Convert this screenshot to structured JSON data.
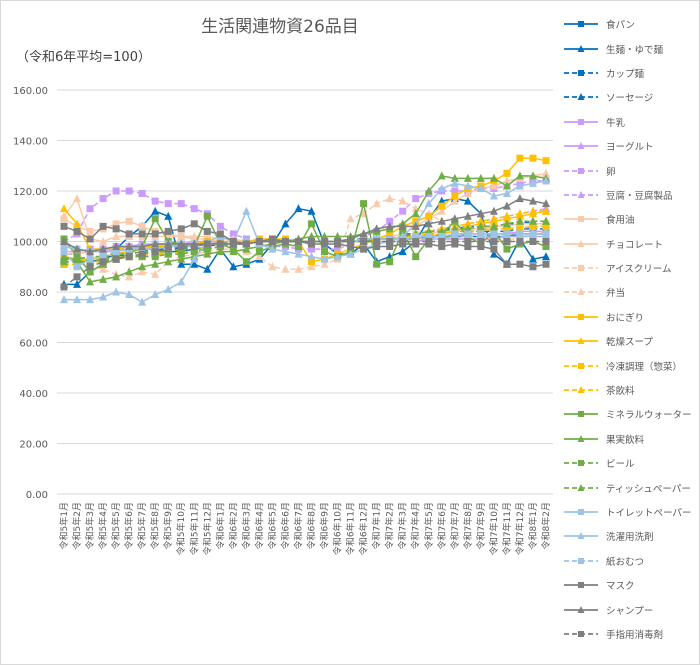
{
  "chart_data": {
    "type": "line",
    "title": "生活関連物資26品目",
    "subtitle": "（令和6年平均=100）",
    "xlabel": "",
    "ylabel": "",
    "ylim": [
      0,
      160
    ],
    "yticks": [
      "0.00",
      "20.00",
      "40.00",
      "60.00",
      "80.00",
      "100.00",
      "120.00",
      "140.00",
      "160.00"
    ],
    "grid": true,
    "legend_position": "right",
    "categories": [
      "令和5年1月",
      "令和5年2月",
      "令和5年3月",
      "令和5年4月",
      "令和5年5月",
      "令和5年6月",
      "令和5年7月",
      "令和5年8月",
      "令和5年9月",
      "令和5年10月",
      "令和5年11月",
      "令和5年12月",
      "令和6年1月",
      "令和6年2月",
      "令和6年3月",
      "令和6年4月",
      "令和6年5月",
      "令和6年6月",
      "令和6年7月",
      "令和6年8月",
      "令和6年9月",
      "令和6年10月",
      "令和6年11月",
      "令和6年12月",
      "令和7年1月",
      "令和7年2月",
      "令和7年3月",
      "令和7年4月",
      "令和7年5月",
      "令和7年6月",
      "令和7年7月",
      "令和7年8月",
      "令和7年9月",
      "令和7年10月",
      "令和7年11月",
      "令和7年12月",
      "令和8年1月",
      "令和8年2月"
    ],
    "series": [
      {
        "name": "食パン",
        "color": "#0070C0",
        "dash": false,
        "marker": "square",
        "values": [
          94,
          93,
          92,
          93,
          95,
          96,
          97,
          97,
          96,
          96,
          97,
          98,
          99,
          99,
          99,
          100,
          100,
          100,
          100,
          100,
          100,
          100,
          100,
          100,
          101,
          101,
          101,
          102,
          102,
          102,
          102,
          102,
          102,
          102,
          102,
          103,
          103,
          103
        ]
      },
      {
        "name": "生麺・ゆで麺",
        "color": "#0070C0",
        "dash": false,
        "marker": "triangle",
        "values": [
          83,
          83,
          88,
          91,
          97,
          102,
          106,
          112,
          110,
          91,
          91,
          89,
          97,
          90,
          91,
          93,
          99,
          107,
          113,
          112,
          99,
          95,
          95,
          99,
          92,
          94,
          96,
          100,
          109,
          116,
          117,
          116,
          111,
          95,
          91,
          101,
          93,
          94
        ]
      },
      {
        "name": "カップ麺",
        "color": "#0070C0",
        "dash": true,
        "marker": "square",
        "values": [
          91,
          91,
          92,
          93,
          94,
          95,
          96,
          97,
          97,
          97,
          98,
          99,
          99,
          99,
          100,
          100,
          100,
          100,
          100,
          100,
          100,
          100,
          101,
          101,
          101,
          101,
          101,
          101,
          103,
          104,
          104,
          104,
          104,
          104,
          104,
          105,
          105,
          105
        ]
      },
      {
        "name": "ソーセージ",
        "color": "#0070C0",
        "dash": true,
        "marker": "triangle",
        "values": [
          93,
          93,
          94,
          94,
          95,
          96,
          97,
          97,
          98,
          98,
          99,
          99,
          99,
          100,
          100,
          100,
          100,
          100,
          100,
          100,
          100,
          100,
          100,
          100,
          101,
          102,
          103,
          103,
          104,
          105,
          105,
          106,
          106,
          106,
          107,
          107,
          108,
          108
        ]
      },
      {
        "name": "牛乳",
        "color": "#CC99FF",
        "dash": false,
        "marker": "square",
        "values": [
          96,
          96,
          97,
          97,
          98,
          98,
          99,
          99,
          99,
          99,
          100,
          100,
          100,
          100,
          100,
          100,
          100,
          100,
          100,
          100,
          100,
          100,
          100,
          100,
          100,
          100,
          100,
          100,
          101,
          101,
          101,
          101,
          101,
          101,
          102,
          102,
          102,
          102
        ]
      },
      {
        "name": "ヨーグルト",
        "color": "#CC99FF",
        "dash": false,
        "marker": "triangle",
        "values": [
          95,
          95,
          96,
          96,
          97,
          97,
          98,
          98,
          98,
          99,
          99,
          99,
          100,
          100,
          100,
          100,
          100,
          100,
          100,
          100,
          100,
          100,
          100,
          100,
          101,
          101,
          101,
          102,
          102,
          102,
          102,
          103,
          103,
          103,
          103,
          104,
          104,
          104
        ]
      },
      {
        "name": "卵",
        "color": "#CC99FF",
        "dash": true,
        "marker": "square",
        "values": [
          100,
          103,
          113,
          117,
          120,
          120,
          119,
          116,
          115,
          115,
          113,
          111,
          106,
          103,
          101,
          99,
          98,
          98,
          97,
          97,
          97,
          97,
          99,
          102,
          104,
          108,
          112,
          117,
          119,
          120,
          120,
          120,
          121,
          121,
          122,
          123,
          124,
          124
        ]
      },
      {
        "name": "豆腐・豆腐製品",
        "color": "#CC99FF",
        "dash": true,
        "marker": "triangle",
        "values": [
          96,
          96,
          97,
          97,
          98,
          98,
          98,
          99,
          99,
          99,
          99,
          100,
          100,
          100,
          100,
          100,
          100,
          100,
          100,
          100,
          100,
          100,
          100,
          100,
          101,
          101,
          102,
          103,
          104,
          105,
          106,
          107,
          108,
          109,
          110,
          111,
          112,
          113
        ]
      },
      {
        "name": "食用油",
        "color": "#F8CBAD",
        "dash": false,
        "marker": "square",
        "values": [
          109,
          106,
          104,
          105,
          107,
          108,
          106,
          104,
          103,
          102,
          101,
          101,
          100,
          100,
          100,
          100,
          100,
          100,
          100,
          100,
          100,
          100,
          100,
          100,
          101,
          101,
          102,
          102,
          103,
          104,
          104,
          105,
          105,
          106,
          106,
          107,
          107,
          107
        ]
      },
      {
        "name": "チョコレート",
        "color": "#F8CBAD",
        "dash": false,
        "marker": "triangle",
        "values": [
          110,
          117,
          101,
          100,
          102,
          102,
          102,
          102,
          102,
          102,
          102,
          102,
          101,
          101,
          100,
          100,
          100,
          100,
          100,
          100,
          100,
          100,
          100,
          100,
          101,
          102,
          103,
          106,
          109,
          112,
          116,
          119,
          121,
          122,
          124,
          125,
          126,
          127
        ]
      },
      {
        "name": "アイスクリーム",
        "color": "#F8CBAD",
        "dash": true,
        "marker": "square",
        "values": [
          95,
          95,
          96,
          96,
          96,
          97,
          97,
          97,
          98,
          98,
          98,
          99,
          99,
          99,
          99,
          100,
          100,
          100,
          100,
          100,
          100,
          100,
          100,
          100,
          101,
          102,
          102,
          103,
          103,
          104,
          104,
          104,
          105,
          105,
          105,
          106,
          106,
          106
        ]
      },
      {
        "name": "弁当",
        "color": "#F8CBAD",
        "dash": true,
        "marker": "triangle",
        "values": [
          96,
          96,
          90,
          89,
          87,
          86,
          88,
          87,
          92,
          94,
          95,
          96,
          97,
          97,
          96,
          94,
          90,
          89,
          89,
          90,
          91,
          93,
          109,
          111,
          115,
          117,
          116,
          113,
          111,
          108,
          106,
          104,
          102,
          101,
          100,
          102,
          103,
          104
        ]
      },
      {
        "name": "おにぎり",
        "color": "#FFC000",
        "dash": false,
        "marker": "square",
        "values": [
          94,
          93,
          93,
          94,
          95,
          96,
          97,
          98,
          98,
          99,
          99,
          100,
          100,
          100,
          100,
          101,
          101,
          101,
          100,
          92,
          93,
          95,
          97,
          99,
          101,
          103,
          106,
          108,
          110,
          114,
          118,
          121,
          122,
          124,
          127,
          133,
          133,
          132
        ]
      },
      {
        "name": "乾燥スープ",
        "color": "#FFC000",
        "dash": false,
        "marker": "triangle",
        "values": [
          113,
          107,
          97,
          97,
          97,
          98,
          98,
          98,
          99,
          99,
          99,
          99,
          99,
          99,
          100,
          100,
          100,
          100,
          100,
          100,
          100,
          100,
          100,
          100,
          101,
          101,
          101,
          101,
          102,
          103,
          104,
          106,
          107,
          108,
          109,
          110,
          111,
          112
        ]
      },
      {
        "name": "冷凍調理（惣菜）",
        "color": "#FFC000",
        "dash": true,
        "marker": "square",
        "values": [
          92,
          92,
          93,
          93,
          94,
          94,
          95,
          95,
          96,
          97,
          97,
          98,
          99,
          99,
          100,
          100,
          100,
          100,
          100,
          100,
          100,
          100,
          100,
          101,
          101,
          101,
          102,
          102,
          103,
          103,
          104,
          104,
          104,
          105,
          105,
          105,
          106,
          106
        ]
      },
      {
        "name": "茶飲料",
        "color": "#FFC000",
        "dash": true,
        "marker": "triangle",
        "values": [
          91,
          91,
          92,
          92,
          93,
          94,
          94,
          95,
          95,
          96,
          96,
          97,
          98,
          99,
          99,
          100,
          100,
          100,
          100,
          100,
          100,
          100,
          100,
          101,
          101,
          101,
          102,
          103,
          104,
          105,
          106,
          107,
          108,
          109,
          110,
          111,
          112,
          112
        ]
      },
      {
        "name": "ミネラルウォーター",
        "color": "#70AD47",
        "dash": false,
        "marker": "square",
        "values": [
          101,
          94,
          88,
          91,
          93,
          95,
          98,
          109,
          100,
          99,
          98,
          110,
          99,
          97,
          92,
          96,
          98,
          99,
          98,
          107,
          96,
          94,
          96,
          115,
          91,
          92,
          104,
          94,
          101,
          103,
          108,
          102,
          99,
          104,
          97,
          99,
          100,
          98
        ]
      },
      {
        "name": "果実飲料",
        "color": "#70AD47",
        "dash": false,
        "marker": "triangle",
        "values": [
          94,
          92,
          84,
          85,
          86,
          88,
          90,
          91,
          92,
          93,
          94,
          95,
          96,
          96,
          97,
          98,
          99,
          100,
          101,
          102,
          102,
          102,
          102,
          103,
          104,
          105,
          107,
          111,
          120,
          126,
          125,
          125,
          125,
          125,
          122,
          126,
          126,
          125
        ]
      },
      {
        "name": "ビール",
        "color": "#70AD47",
        "dash": true,
        "marker": "square",
        "values": [
          92,
          92,
          92,
          93,
          93,
          94,
          94,
          94,
          95,
          95,
          96,
          97,
          98,
          99,
          99,
          100,
          100,
          100,
          100,
          100,
          100,
          100,
          100,
          100,
          101,
          101,
          101,
          101,
          102,
          102,
          102,
          103,
          103,
          103,
          103,
          103,
          103,
          103
        ]
      },
      {
        "name": "ティッシュペーパー",
        "color": "#70AD47",
        "dash": true,
        "marker": "triangle",
        "values": [
          93,
          93,
          94,
          94,
          95,
          95,
          96,
          96,
          96,
          97,
          97,
          97,
          98,
          99,
          99,
          100,
          100,
          100,
          100,
          100,
          100,
          100,
          100,
          100,
          101,
          101,
          102,
          103,
          104,
          104,
          105,
          105,
          106,
          106,
          107,
          108,
          108,
          108
        ]
      },
      {
        "name": "トイレットペーパー",
        "color": "#9DC3E6",
        "dash": false,
        "marker": "square",
        "values": [
          98,
          97,
          96,
          96,
          96,
          97,
          97,
          97,
          98,
          98,
          98,
          99,
          99,
          99,
          99,
          100,
          100,
          100,
          100,
          100,
          100,
          100,
          100,
          101,
          101,
          101,
          101,
          102,
          102,
          102,
          103,
          103,
          103,
          103,
          103,
          103,
          103,
          103
        ]
      },
      {
        "name": "洗濯用洗剤",
        "color": "#9DC3E6",
        "dash": false,
        "marker": "triangle",
        "values": [
          77,
          77,
          77,
          78,
          80,
          79,
          76,
          79,
          81,
          84,
          93,
          100,
          102,
          100,
          112,
          99,
          97,
          96,
          95,
          94,
          93,
          94,
          95,
          97,
          99,
          100,
          102,
          107,
          115,
          121,
          123,
          122,
          121,
          118,
          119,
          122,
          123,
          124
        ]
      },
      {
        "name": "紙おむつ",
        "color": "#9DC3E6",
        "dash": true,
        "marker": "square",
        "values": [
          96,
          90,
          93,
          94,
          96,
          97,
          98,
          99,
          99,
          99,
          99,
          99,
          99,
          99,
          100,
          100,
          100,
          100,
          100,
          100,
          100,
          100,
          100,
          100,
          100,
          100,
          101,
          101,
          101,
          101,
          102,
          102,
          102,
          102,
          102,
          102,
          102,
          102
        ]
      },
      {
        "name": "マスク",
        "color": "#7F7F7F",
        "dash": false,
        "marker": "square",
        "values": [
          106,
          104,
          101,
          106,
          105,
          103,
          103,
          103,
          104,
          105,
          107,
          104,
          103,
          100,
          99,
          100,
          101,
          100,
          100,
          99,
          99,
          99,
          98,
          97,
          98,
          98,
          99,
          99,
          99,
          98,
          99,
          98,
          98,
          97,
          91,
          91,
          90,
          91
        ]
      },
      {
        "name": "シャンプー",
        "color": "#7F7F7F",
        "dash": false,
        "marker": "triangle",
        "values": [
          100,
          97,
          96,
          97,
          98,
          98,
          98,
          99,
          99,
          99,
          99,
          99,
          99,
          99,
          99,
          100,
          100,
          100,
          100,
          100,
          100,
          100,
          101,
          103,
          105,
          106,
          106,
          106,
          107,
          108,
          109,
          110,
          111,
          112,
          114,
          117,
          116,
          115
        ]
      },
      {
        "name": "手指用消毒剤",
        "color": "#7F7F7F",
        "dash": true,
        "marker": "square",
        "values": [
          82,
          86,
          90,
          92,
          93,
          94,
          95,
          96,
          97,
          98,
          98,
          99,
          99,
          99,
          99,
          100,
          100,
          100,
          100,
          100,
          100,
          100,
          100,
          100,
          100,
          100,
          100,
          100,
          100,
          100,
          100,
          100,
          100,
          100,
          100,
          100,
          100,
          100
        ]
      }
    ]
  }
}
